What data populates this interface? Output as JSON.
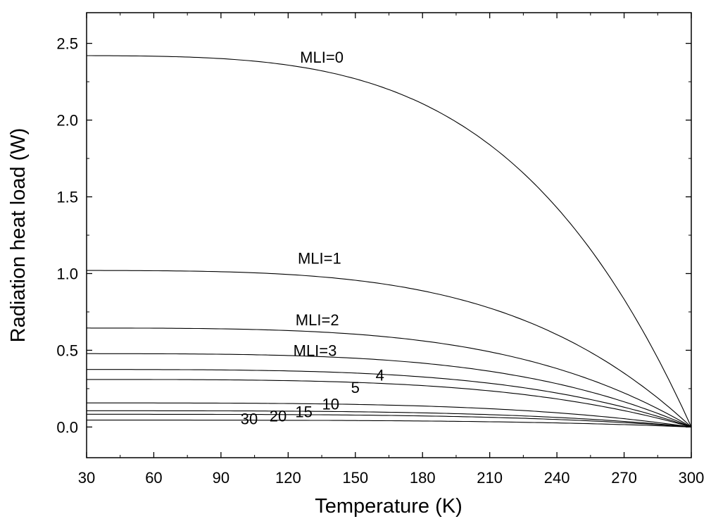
{
  "chart_data": {
    "type": "line",
    "title": "",
    "xlabel": "Temperature (K)",
    "ylabel": "Radiation heat load (W)",
    "xlim": [
      30,
      300
    ],
    "ylim": [
      -0.2,
      2.7
    ],
    "xticks": [
      30,
      60,
      90,
      120,
      150,
      180,
      210,
      240,
      270,
      300
    ],
    "xtick_labels": [
      "30",
      "60",
      "90",
      "120",
      "150",
      "180",
      "210",
      "240",
      "270",
      "300"
    ],
    "yticks": [
      0.0,
      0.5,
      1.0,
      1.5,
      2.0,
      2.5
    ],
    "ytick_labels": [
      "0.0",
      "0.5",
      "1.0",
      "1.5",
      "2.0",
      "2.5"
    ],
    "grid": false,
    "line_color": "#000000",
    "series": [
      {
        "name": "MLI=0",
        "value_at_30K": 2.42,
        "value_at_300K": 0
      },
      {
        "name": "MLI=1",
        "value_at_30K": 1.02,
        "value_at_300K": 0
      },
      {
        "name": "MLI=2",
        "value_at_30K": 0.645,
        "value_at_300K": 0
      },
      {
        "name": "MLI=3",
        "value_at_30K": 0.478,
        "value_at_300K": 0
      },
      {
        "name": "4",
        "value_at_30K": 0.375,
        "value_at_300K": 0
      },
      {
        "name": "5",
        "value_at_30K": 0.31,
        "value_at_300K": 0
      },
      {
        "name": "10",
        "value_at_30K": 0.157,
        "value_at_300K": 0
      },
      {
        "name": "15",
        "value_at_30K": 0.106,
        "value_at_300K": 0
      },
      {
        "name": "20",
        "value_at_30K": 0.083,
        "value_at_300K": 0
      },
      {
        "name": "30",
        "value_at_30K": 0.045,
        "value_at_300K": 0
      }
    ],
    "annotations": [
      {
        "text": "MLI=0",
        "x": 135,
        "y": 2.41
      },
      {
        "text": "MLI=1",
        "x": 134,
        "y": 1.1
      },
      {
        "text": "MLI=2",
        "x": 133,
        "y": 0.7
      },
      {
        "text": "MLI=3",
        "x": 132,
        "y": 0.5
      },
      {
        "text": "4",
        "x": 161,
        "y": 0.34
      },
      {
        "text": "5",
        "x": 150,
        "y": 0.26
      },
      {
        "text": "10",
        "x": 139,
        "y": 0.15
      },
      {
        "text": "15",
        "x": 127,
        "y": 0.1
      },
      {
        "text": "20",
        "x": 115.5,
        "y": 0.074
      },
      {
        "text": "30",
        "x": 102.6,
        "y": 0.055
      }
    ]
  }
}
